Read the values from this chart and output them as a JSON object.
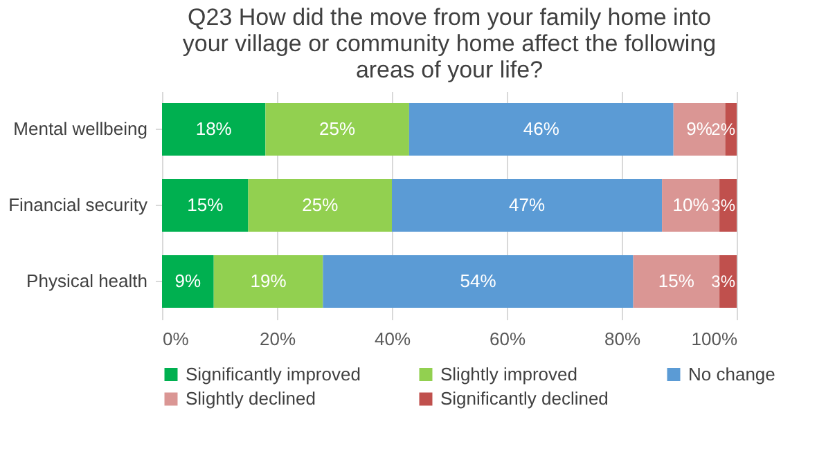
{
  "chart_data": {
    "type": "bar",
    "orientation": "horizontal",
    "stacked": true,
    "title": "Q23 How did the move from your family home into your village or community home affect the following areas of your life?",
    "categories": [
      "Mental wellbeing",
      "Financial security",
      "Physical health"
    ],
    "series": [
      {
        "name": "Significantly improved",
        "color": "#00b050",
        "values": [
          18,
          15,
          9
        ],
        "value_labels": [
          "18%",
          "15%",
          "9%"
        ]
      },
      {
        "name": "Slightly improved",
        "color": "#92d050",
        "values": [
          25,
          25,
          19
        ],
        "value_labels": [
          "25%",
          "25%",
          "19%"
        ]
      },
      {
        "name": "No change",
        "color": "#5b9bd5",
        "values": [
          46,
          47,
          54
        ],
        "value_labels": [
          "46%",
          "47%",
          "54%"
        ]
      },
      {
        "name": "Slightly declined",
        "color": "#da9694",
        "values": [
          9,
          10,
          15
        ],
        "value_labels": [
          "9%",
          "10%",
          "15%"
        ]
      },
      {
        "name": "Significantly declined",
        "color": "#c0504d",
        "values": [
          2,
          3,
          3
        ],
        "value_labels": [
          "2%",
          "3%",
          "3%"
        ]
      }
    ],
    "xlim": [
      0,
      100
    ],
    "xticks": [
      {
        "value": 0,
        "label": "0%"
      },
      {
        "value": 20,
        "label": "20%"
      },
      {
        "value": 40,
        "label": "40%"
      },
      {
        "value": 60,
        "label": "60%"
      },
      {
        "value": 80,
        "label": "80%"
      },
      {
        "value": 100,
        "label": "100%"
      }
    ],
    "grid": "x",
    "legend": "bottom"
  }
}
